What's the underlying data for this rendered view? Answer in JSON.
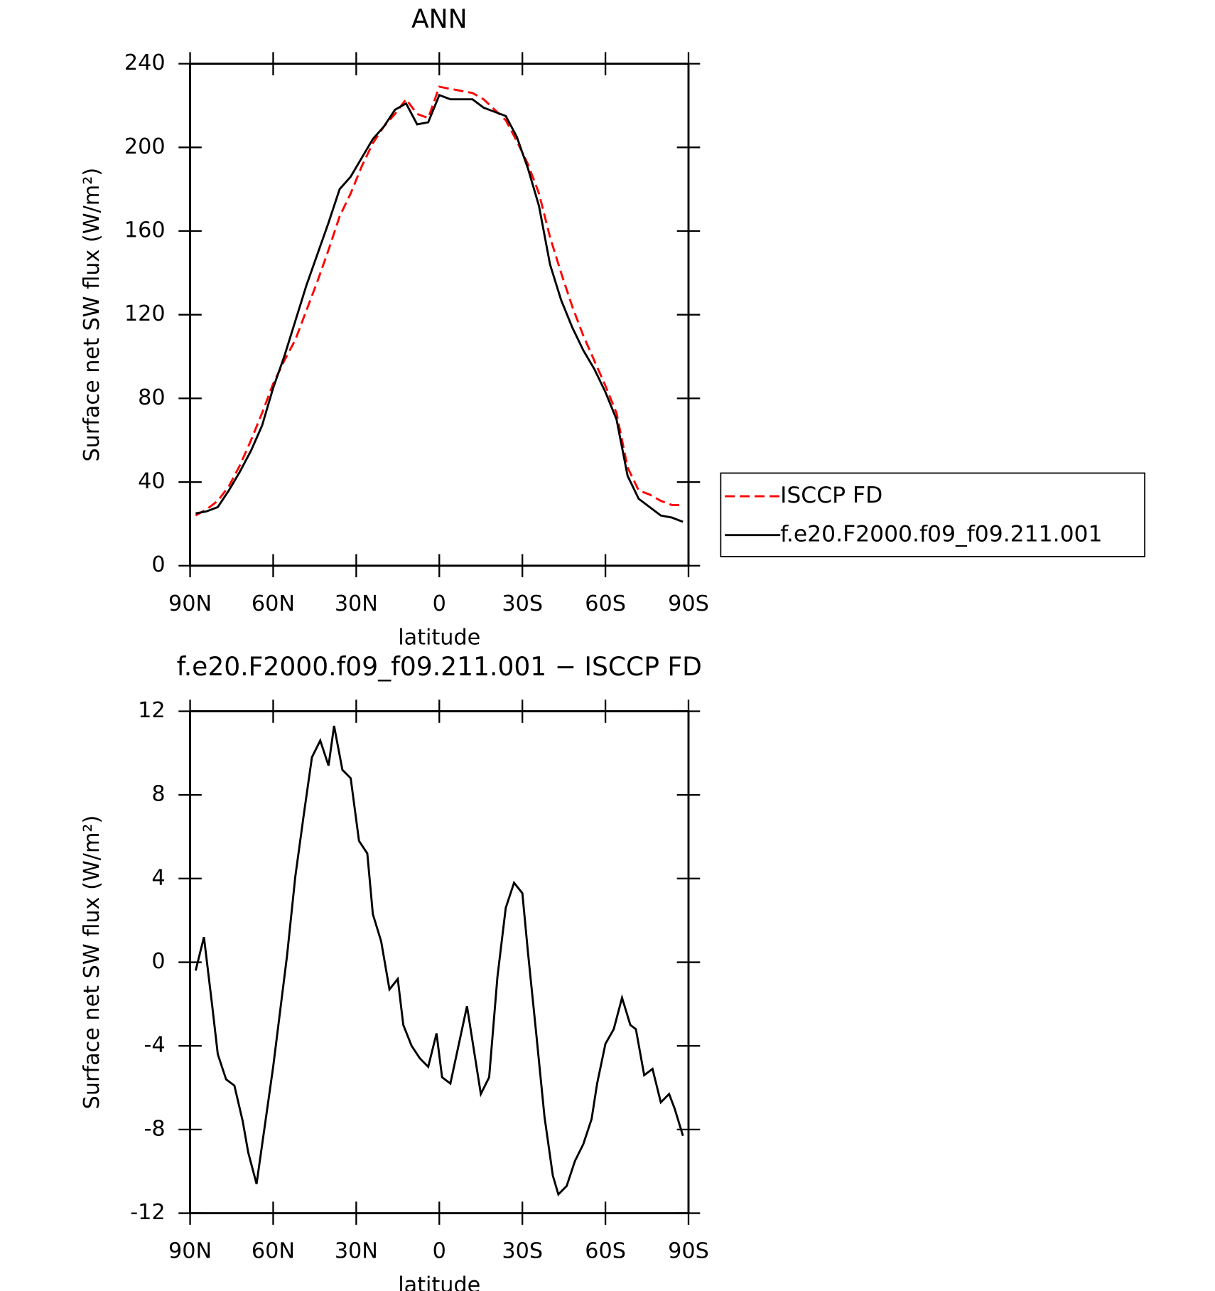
{
  "chart_data": [
    {
      "type": "line",
      "title": "ANN",
      "xlabel": "latitude",
      "ylabel": "Surface net SW flux (W/m²)",
      "x": [
        88,
        84,
        80,
        76,
        72,
        68,
        64,
        60,
        56,
        52,
        48,
        44,
        40,
        36,
        32,
        28,
        24,
        20,
        16,
        12,
        8,
        4,
        0,
        -4,
        -8,
        -12,
        -16,
        -20,
        -24,
        -28,
        -32,
        -36,
        -40,
        -44,
        -48,
        -52,
        -56,
        -60,
        -64,
        -68,
        -72,
        -76,
        -80,
        -84,
        -88
      ],
      "series": [
        {
          "name": "ISCCP FD",
          "color": "#ff0000",
          "line_style": "dashed",
          "values": [
            24,
            27,
            31,
            38,
            48,
            60,
            73,
            87,
            98,
            108,
            122,
            136,
            151,
            167,
            178,
            191,
            202,
            210,
            216,
            223,
            216,
            214,
            229,
            228,
            227,
            226,
            223,
            218,
            213,
            203,
            192,
            178,
            157,
            140,
            124,
            110,
            98,
            86,
            73,
            47,
            36,
            34,
            31,
            29,
            29
          ]
        },
        {
          "name": "f.e20.F2000.f09_f09.211.001",
          "color": "#000000",
          "line_style": "solid",
          "values": [
            25,
            26,
            28,
            36,
            45,
            55,
            67,
            85,
            100,
            117,
            134,
            149,
            164,
            180,
            186,
            195,
            204,
            210,
            218,
            221,
            211,
            212,
            225,
            223,
            223,
            223,
            219,
            217,
            215,
            205,
            190,
            172,
            144,
            127,
            114,
            103,
            94,
            83,
            70,
            43,
            32,
            28,
            24,
            23,
            21
          ]
        }
      ],
      "xlim": [
        90,
        -90
      ],
      "xticks": [
        {
          "value": 90,
          "label": "90N"
        },
        {
          "value": 60,
          "label": "60N"
        },
        {
          "value": 30,
          "label": "30N"
        },
        0,
        {
          "value": -30,
          "label": "30S"
        },
        {
          "value": -60,
          "label": "60S"
        },
        {
          "value": -90,
          "label": "90S"
        }
      ],
      "ylim": [
        0,
        240
      ],
      "yticks": [
        0,
        40,
        80,
        120,
        160,
        200,
        240
      ],
      "legend": "right",
      "grid": false
    },
    {
      "type": "line",
      "title": "f.e20.F2000.f09_f09.211.001 − ISCCP FD",
      "xlabel": "latitude",
      "ylabel": "Surface net SW flux (W/m²)",
      "x": [
        88,
        85,
        82,
        80,
        77,
        74,
        71,
        69,
        66,
        60,
        55,
        52,
        49,
        46,
        43,
        40,
        38,
        35,
        32,
        29,
        26,
        24,
        21,
        18,
        15,
        13,
        10,
        7,
        4,
        1,
        -1,
        -4,
        -10,
        -15,
        -18,
        -21,
        -24,
        -27,
        -30,
        -32,
        -35,
        -38,
        -41,
        -43,
        -46,
        -49,
        -52,
        -55,
        -57,
        -60,
        -63,
        -66,
        -69,
        -71,
        -74,
        -77,
        -80,
        -83,
        -85,
        -88
      ],
      "values": [
        -0.4,
        1.2,
        -2.1,
        -4.4,
        -5.6,
        -5.9,
        -7.6,
        -9.1,
        -10.6,
        -5,
        0.3,
        4.1,
        7,
        9.8,
        10.6,
        9.4,
        11.3,
        9.2,
        8.8,
        5.8,
        5.2,
        2.3,
        1,
        -1.3,
        -0.8,
        -3,
        -4,
        -4.6,
        -5,
        -3.4,
        -5.5,
        -5.8,
        -2.1,
        -6.3,
        -5.5,
        -0.7,
        2.6,
        3.8,
        3.3,
        0.5,
        -3.4,
        -7.4,
        -10.2,
        -11.1,
        -10.7,
        -9.5,
        -8.7,
        -7.5,
        -5.8,
        -3.9,
        -3.2,
        -1.7,
        -3,
        -3.2,
        -5.4,
        -5.1,
        -6.7,
        -6.3,
        -7,
        -8.3
      ],
      "color": "#000000",
      "xlim": [
        90,
        -90
      ],
      "xticks": [
        {
          "value": 90,
          "label": "90N"
        },
        {
          "value": 60,
          "label": "60N"
        },
        {
          "value": 30,
          "label": "30N"
        },
        0,
        {
          "value": -30,
          "label": "30S"
        },
        {
          "value": -60,
          "label": "60S"
        },
        {
          "value": -90,
          "label": "90S"
        }
      ],
      "ylim": [
        -12,
        12
      ],
      "yticks": [
        -12,
        -8,
        -4,
        0,
        4,
        8,
        12
      ],
      "grid": false
    }
  ]
}
